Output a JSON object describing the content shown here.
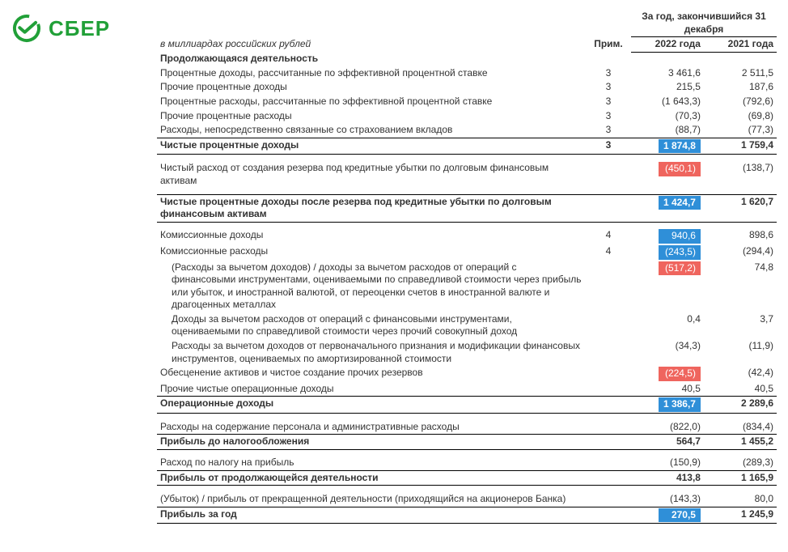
{
  "brand": {
    "name": "СБЕР",
    "color": "#21a038"
  },
  "header": {
    "period": "За год, закончившийся 31 декабря",
    "units": "в миллиардах российских рублей",
    "note_col": "Прим.",
    "year1": "2022 года",
    "year2": "2021 года"
  },
  "colors": {
    "highlight_blue": "#2f8fd8",
    "highlight_red": "#ef655e"
  },
  "rows": [
    {
      "type": "section",
      "label": "Продолжающаяся деятельность"
    },
    {
      "type": "line",
      "label": "Процентные доходы, рассчитанные по эффективной процентной ставке",
      "note": "3",
      "y22": "3 461,6",
      "y21": "2 511,5"
    },
    {
      "type": "line",
      "label": "Прочие процентные доходы",
      "note": "3",
      "y22": "215,5",
      "y21": "187,6"
    },
    {
      "type": "line",
      "label": "Процентные расходы, рассчитанные по эффективной процентной ставке",
      "note": "3",
      "y22": "(1 643,3)",
      "y21": "(792,6)"
    },
    {
      "type": "line",
      "label": "Прочие процентные расходы",
      "note": "3",
      "y22": "(70,3)",
      "y21": "(69,8)"
    },
    {
      "type": "line",
      "label": "Расходы, непосредственно связанные со страхованием вкладов",
      "note": "3",
      "y22": "(88,7)",
      "y21": "(77,3)"
    },
    {
      "type": "total",
      "label": "Чистые процентные доходы",
      "note": "3",
      "y22": "1 874,8",
      "y22_hl": "blue",
      "y21": "1 759,4"
    },
    {
      "type": "spacer"
    },
    {
      "type": "line",
      "label": "Чистый расход от создания резерва под кредитные убытки по долговым финансовым активам",
      "y22": "(450,1)",
      "y22_hl": "red",
      "y21": "(138,7)"
    },
    {
      "type": "spacer"
    },
    {
      "type": "total",
      "label": "Чистые процентные доходы после резерва под кредитные убытки по долговым финансовым активам",
      "y22": "1 424,7",
      "y22_hl": "blue",
      "y21": "1 620,7"
    },
    {
      "type": "spacer"
    },
    {
      "type": "line",
      "label": "Комиссионные доходы",
      "note": "4",
      "y22": "940,6",
      "y22_hl": "blue",
      "y21": "898,6"
    },
    {
      "type": "line",
      "label": "Комиссионные расходы",
      "note": "4",
      "y22": "(243,5)",
      "y22_hl": "blue",
      "y21": "(294,4)"
    },
    {
      "type": "line",
      "label": "(Расходы за вычетом доходов) / доходы за вычетом расходов от операций с финансовыми инструментами, оцениваемыми по справедливой стоимости через прибыль или убыток, и иностранной валютой, от переоценки счетов в иностранной валюте и драгоценных металлах",
      "indent": true,
      "y22": "(517,2)",
      "y22_hl": "red",
      "y21": "74,8"
    },
    {
      "type": "line",
      "label": "Доходы за вычетом расходов от операций с финансовыми инструментами, оцениваемыми по справедливой стоимости через прочий совокупный доход",
      "indent": true,
      "y22": "0,4",
      "y21": "3,7"
    },
    {
      "type": "line",
      "label": "Расходы за вычетом доходов от первоначального признания и модификации финансовых инструментов, оцениваемых по амортизированной стоимости",
      "indent": true,
      "y22": "(34,3)",
      "y21": "(11,9)"
    },
    {
      "type": "line",
      "label": "Обесценение активов и чистое создание прочих резервов",
      "y22": "(224,5)",
      "y22_hl": "red",
      "y21": "(42,4)"
    },
    {
      "type": "line",
      "label": "Прочие чистые операционные доходы",
      "y22": "40,5",
      "y21": "40,5"
    },
    {
      "type": "total",
      "label": "Операционные доходы",
      "y22": "1 386,7",
      "y22_hl": "blue",
      "y21": "2 289,6"
    },
    {
      "type": "spacer"
    },
    {
      "type": "line",
      "label": "Расходы на содержание персонала и административные расходы",
      "y22": "(822,0)",
      "y21": "(834,4)"
    },
    {
      "type": "total",
      "label": "Прибыль до налогообложения",
      "y22": "564,7",
      "y21": "1 455,2"
    },
    {
      "type": "spacer"
    },
    {
      "type": "line",
      "label": "Расход по налогу на прибыль",
      "y22": "(150,9)",
      "y21": "(289,3)"
    },
    {
      "type": "total",
      "label": "Прибыль от продолжающейся деятельности",
      "y22": "413,8",
      "y21": "1 165,9"
    },
    {
      "type": "spacer"
    },
    {
      "type": "line",
      "label": "(Убыток) / прибыль от прекращенной деятельности (приходящийся на акционеров Банка)",
      "y22": "(143,3)",
      "y21": "80,0"
    },
    {
      "type": "total",
      "label": "Прибыль за год",
      "y22": "270,5",
      "y22_hl": "blue",
      "y21": "1 245,9"
    }
  ]
}
